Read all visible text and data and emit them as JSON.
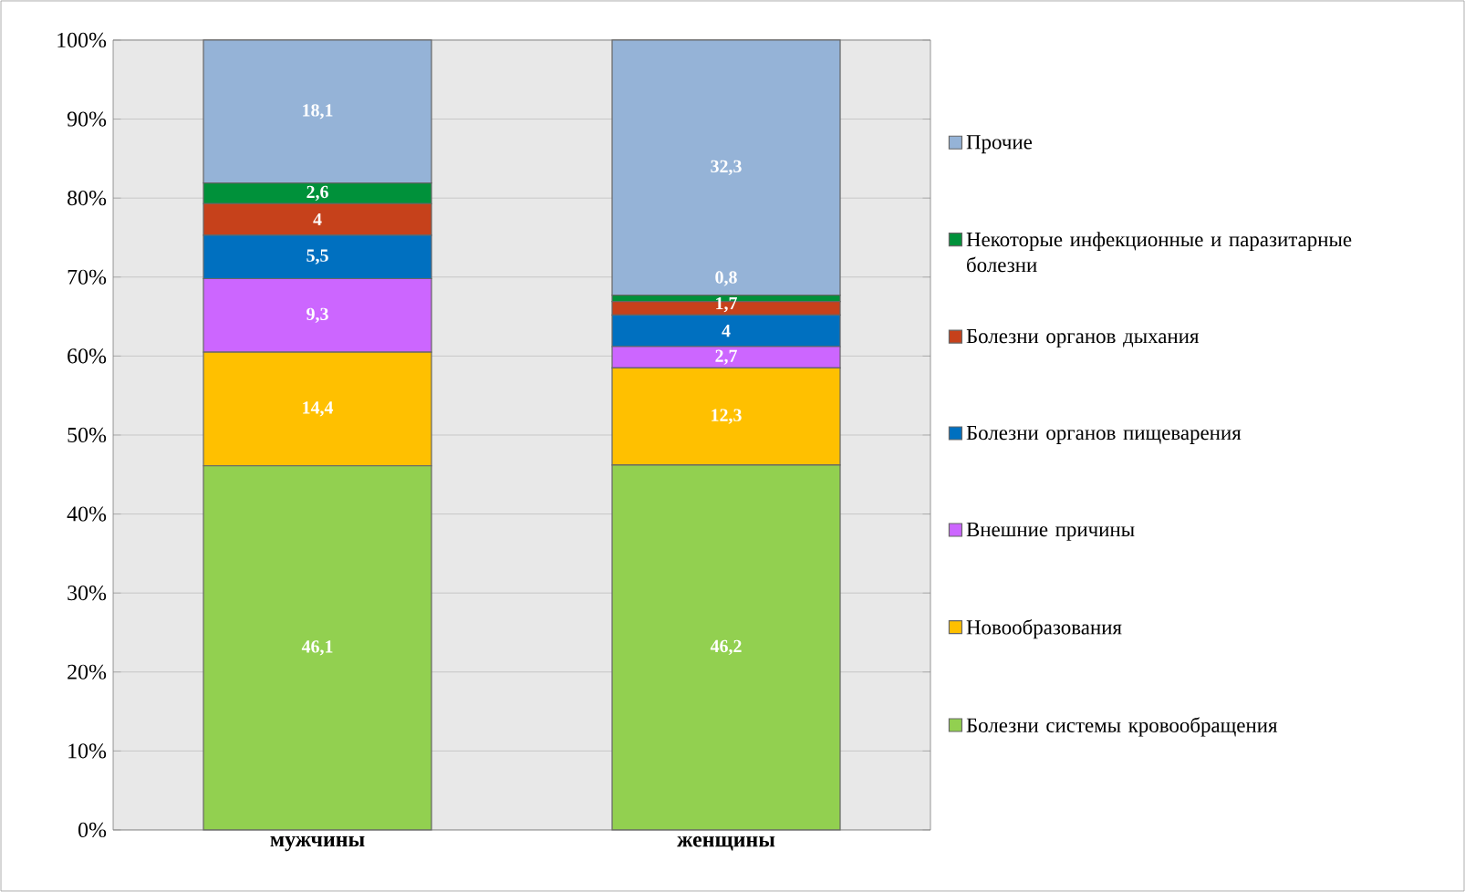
{
  "chart_data": {
    "type": "bar",
    "stacked": true,
    "categories": [
      "мужчины",
      "женщины"
    ],
    "series": [
      {
        "name": "Болезни системы кровообращения",
        "color": "#92d050",
        "values": [
          46.1,
          46.2
        ],
        "value_labels": [
          "46,1",
          "46,2"
        ]
      },
      {
        "name": "Новообразования",
        "color": "#ffc000",
        "values": [
          14.4,
          12.3
        ],
        "value_labels": [
          "14,4",
          "12,3"
        ]
      },
      {
        "name": "Внешние причины",
        "color": "#cc66ff",
        "values": [
          9.3,
          2.7
        ],
        "value_labels": [
          "9,3",
          "2,7"
        ]
      },
      {
        "name": "Болезни органов пищеварения",
        "color": "#0070c0",
        "values": [
          5.5,
          4
        ],
        "value_labels": [
          "5,5",
          "4"
        ]
      },
      {
        "name": "Болезни органов дыхания",
        "color": "#c6411b",
        "values": [
          4,
          1.7
        ],
        "value_labels": [
          "4",
          "1,7"
        ]
      },
      {
        "name": "Некоторые инфекционные и паразитарные болезни",
        "color": "#00913a",
        "values": [
          2.6,
          0.8
        ],
        "value_labels": [
          "2,6",
          "0,8"
        ]
      },
      {
        "name": "Прочие",
        "color": "#95b3d7",
        "values": [
          18.1,
          32.3
        ],
        "value_labels": [
          "18,1",
          "32,3"
        ]
      }
    ],
    "ylim": [
      0,
      100
    ],
    "yticks": [
      {
        "value": 0,
        "label": "0%"
      },
      {
        "value": 10,
        "label": "10%"
      },
      {
        "value": 20,
        "label": "20%"
      },
      {
        "value": 30,
        "label": "30%"
      },
      {
        "value": 40,
        "label": "40%"
      },
      {
        "value": 50,
        "label": "50%"
      },
      {
        "value": 60,
        "label": "60%"
      },
      {
        "value": 70,
        "label": "70%"
      },
      {
        "value": 80,
        "label": "80%"
      },
      {
        "value": 90,
        "label": "90%"
      },
      {
        "value": 100,
        "label": "100%"
      }
    ],
    "grid": "y",
    "legend": "right"
  }
}
